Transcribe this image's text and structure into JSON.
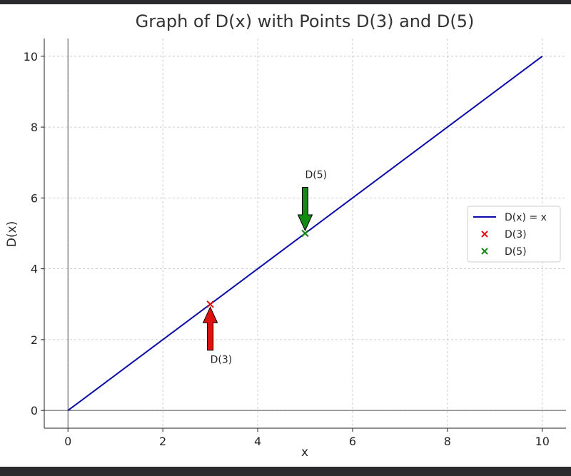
{
  "chart_data": {
    "type": "line",
    "title": "Graph of D(x) with Points D(3) and D(5)",
    "xlabel": "x",
    "ylabel": "D(x)",
    "xlim": [
      -0.5,
      10.5
    ],
    "ylim": [
      -0.5,
      10.5
    ],
    "xticks": [
      0,
      2,
      4,
      6,
      8,
      10
    ],
    "yticks": [
      0,
      2,
      4,
      6,
      8,
      10
    ],
    "grid": true,
    "legend_position": "center-right",
    "series": [
      {
        "name": "D(x) = x",
        "kind": "line",
        "color": "#0a0aa8",
        "x": [
          0,
          10
        ],
        "y": [
          0,
          10
        ]
      },
      {
        "name": "D(3)",
        "kind": "marker",
        "marker": "x",
        "color": "#e01010",
        "x": [
          3
        ],
        "y": [
          3
        ]
      },
      {
        "name": "D(5)",
        "kind": "marker",
        "marker": "x",
        "color": "#138a13",
        "x": [
          5
        ],
        "y": [
          5
        ]
      }
    ],
    "annotations": [
      {
        "text": "D(3)",
        "point": [
          3,
          3
        ],
        "text_at": [
          3,
          1.5
        ],
        "arrow_color": "#e01010"
      },
      {
        "text": "D(5)",
        "point": [
          5,
          5
        ],
        "text_at": [
          5,
          6.5
        ],
        "arrow_color": "#138a13"
      }
    ]
  }
}
